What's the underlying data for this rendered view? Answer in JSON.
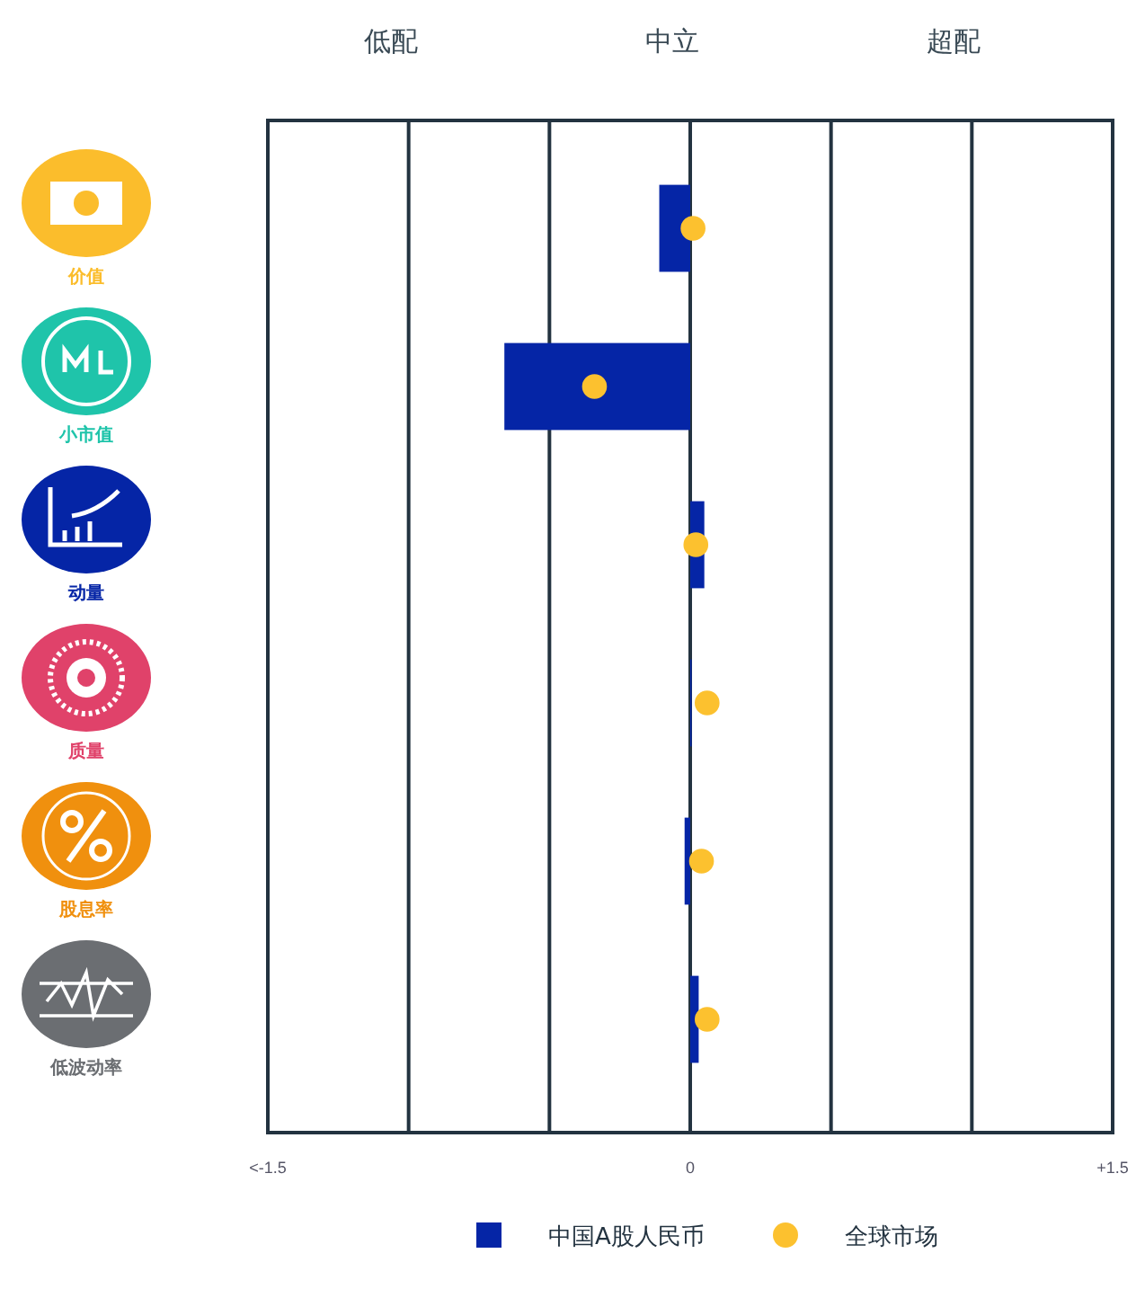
{
  "chart_data": {
    "type": "bar",
    "orientation": "horizontal",
    "categories": [
      "价值",
      "小市值",
      "动量",
      "质量",
      "股息率",
      "低波动率"
    ],
    "series": [
      {
        "name": "中国A股人民币",
        "color": "#0525a6",
        "values": [
          -0.11,
          -0.66,
          0.05,
          0.005,
          -0.02,
          0.03
        ]
      },
      {
        "name": "全球市场",
        "type": "scatter",
        "color": "#fcc12f",
        "values": [
          0.01,
          -0.34,
          0.02,
          0.06,
          0.04,
          0.06
        ]
      }
    ],
    "xlim": [
      -1.5,
      1.5
    ],
    "xticks": [
      {
        "value": -1.5,
        "label": "<-1.5"
      },
      {
        "value": -1,
        "label": null
      },
      {
        "value": -0.5,
        "label": null
      },
      0,
      {
        "value": 0.5,
        "label": null
      },
      {
        "value": 1,
        "label": null
      },
      {
        "value": 1.5,
        "label": "+1.5"
      }
    ],
    "annotations": [
      "低配",
      "中立",
      "超配"
    ],
    "grid": "x",
    "legend": "bottom",
    "marker": "circle"
  }
}
